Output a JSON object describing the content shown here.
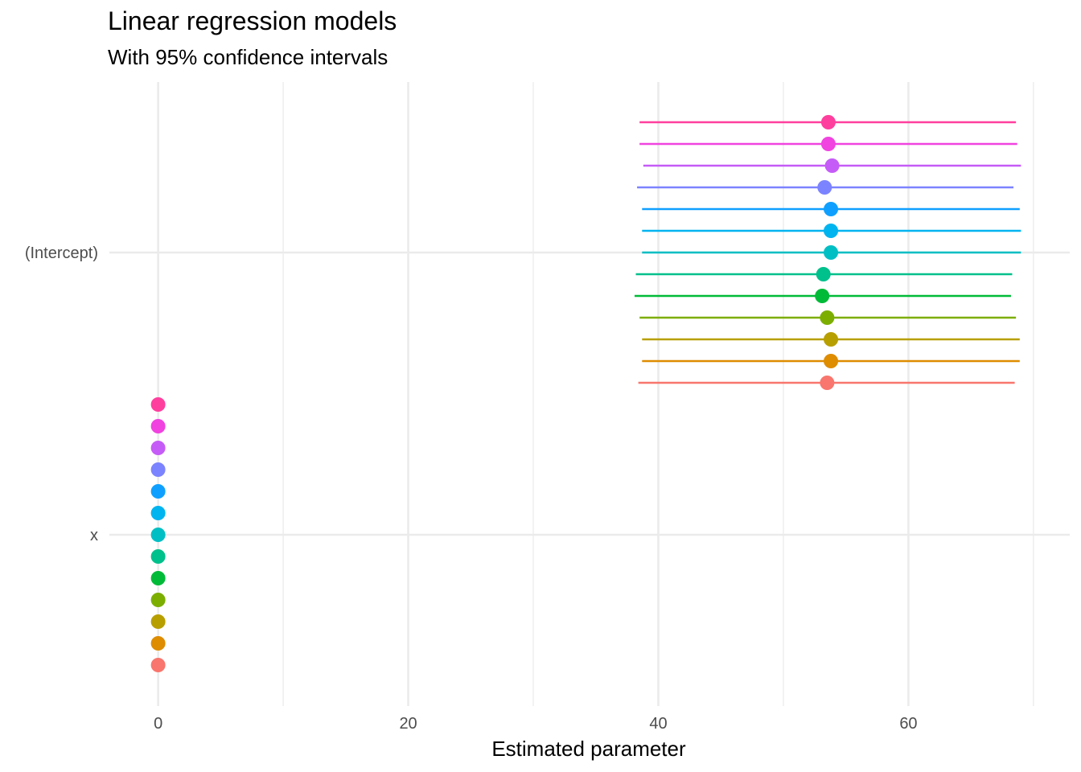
{
  "chart_data": {
    "type": "scatter",
    "title": "Linear regression models",
    "subtitle": "With 95% confidence intervals",
    "xlabel": "Estimated parameter",
    "ylabel": "",
    "xlim": [
      -3.9,
      72.9
    ],
    "x_ticks": [
      0,
      20,
      40,
      60
    ],
    "y_categories": [
      "x",
      "(Intercept)"
    ],
    "grid": true,
    "legend": "none",
    "colors": [
      "#F8766D",
      "#DE8C00",
      "#B79F00",
      "#7CAE00",
      "#00BA38",
      "#00C08B",
      "#00BFC4",
      "#00B4F0",
      "#619CFF",
      "#C77CFF",
      "#F564E3",
      "#FF64B0",
      "#FF4F9A"
    ],
    "series": [
      {
        "color": "#F8766D",
        "intercept": {
          "estimate": 53.5,
          "low": 38.4,
          "high": 68.5
        },
        "x": {
          "estimate": 0,
          "low": 0,
          "high": 0
        }
      },
      {
        "color": "#DE8C00",
        "intercept": {
          "estimate": 53.8,
          "low": 38.7,
          "high": 68.9
        },
        "x": {
          "estimate": 0,
          "low": 0,
          "high": 0
        }
      },
      {
        "color": "#B79F00",
        "intercept": {
          "estimate": 53.8,
          "low": 38.7,
          "high": 68.9
        },
        "x": {
          "estimate": 0,
          "low": 0,
          "high": 0
        }
      },
      {
        "color": "#7CAE00",
        "intercept": {
          "estimate": 53.5,
          "low": 38.5,
          "high": 68.6
        },
        "x": {
          "estimate": 0,
          "low": 0,
          "high": 0
        }
      },
      {
        "color": "#00BA38",
        "intercept": {
          "estimate": 53.1,
          "low": 38.1,
          "high": 68.2
        },
        "x": {
          "estimate": 0,
          "low": 0,
          "high": 0
        }
      },
      {
        "color": "#00C08B",
        "intercept": {
          "estimate": 53.2,
          "low": 38.2,
          "high": 68.3
        },
        "x": {
          "estimate": 0,
          "low": 0,
          "high": 0
        }
      },
      {
        "color": "#00BFC4",
        "intercept": {
          "estimate": 53.8,
          "low": 38.7,
          "high": 69.0
        },
        "x": {
          "estimate": 0,
          "low": 0,
          "high": 0
        }
      },
      {
        "color": "#00B4F0",
        "intercept": {
          "estimate": 53.8,
          "low": 38.7,
          "high": 69.0
        },
        "x": {
          "estimate": 0,
          "low": 0,
          "high": 0
        }
      },
      {
        "color": "#0FA0FF",
        "intercept": {
          "estimate": 53.8,
          "low": 38.7,
          "high": 68.9
        },
        "x": {
          "estimate": 0,
          "low": 0,
          "high": 0
        }
      },
      {
        "color": "#7C83FF",
        "intercept": {
          "estimate": 53.3,
          "low": 38.3,
          "high": 68.4
        },
        "x": {
          "estimate": 0,
          "low": 0,
          "high": 0
        }
      },
      {
        "color": "#C55CF7",
        "intercept": {
          "estimate": 53.9,
          "low": 38.8,
          "high": 69.0
        },
        "x": {
          "estimate": 0,
          "low": 0,
          "high": 0
        }
      },
      {
        "color": "#F043E0",
        "intercept": {
          "estimate": 53.6,
          "low": 38.5,
          "high": 68.7
        },
        "x": {
          "estimate": 0,
          "low": 0,
          "high": 0
        }
      },
      {
        "color": "#FF3F9E",
        "intercept": {
          "estimate": 53.6,
          "low": 38.5,
          "high": 68.6
        },
        "x": {
          "estimate": 0,
          "low": 0,
          "high": 0
        }
      }
    ]
  }
}
